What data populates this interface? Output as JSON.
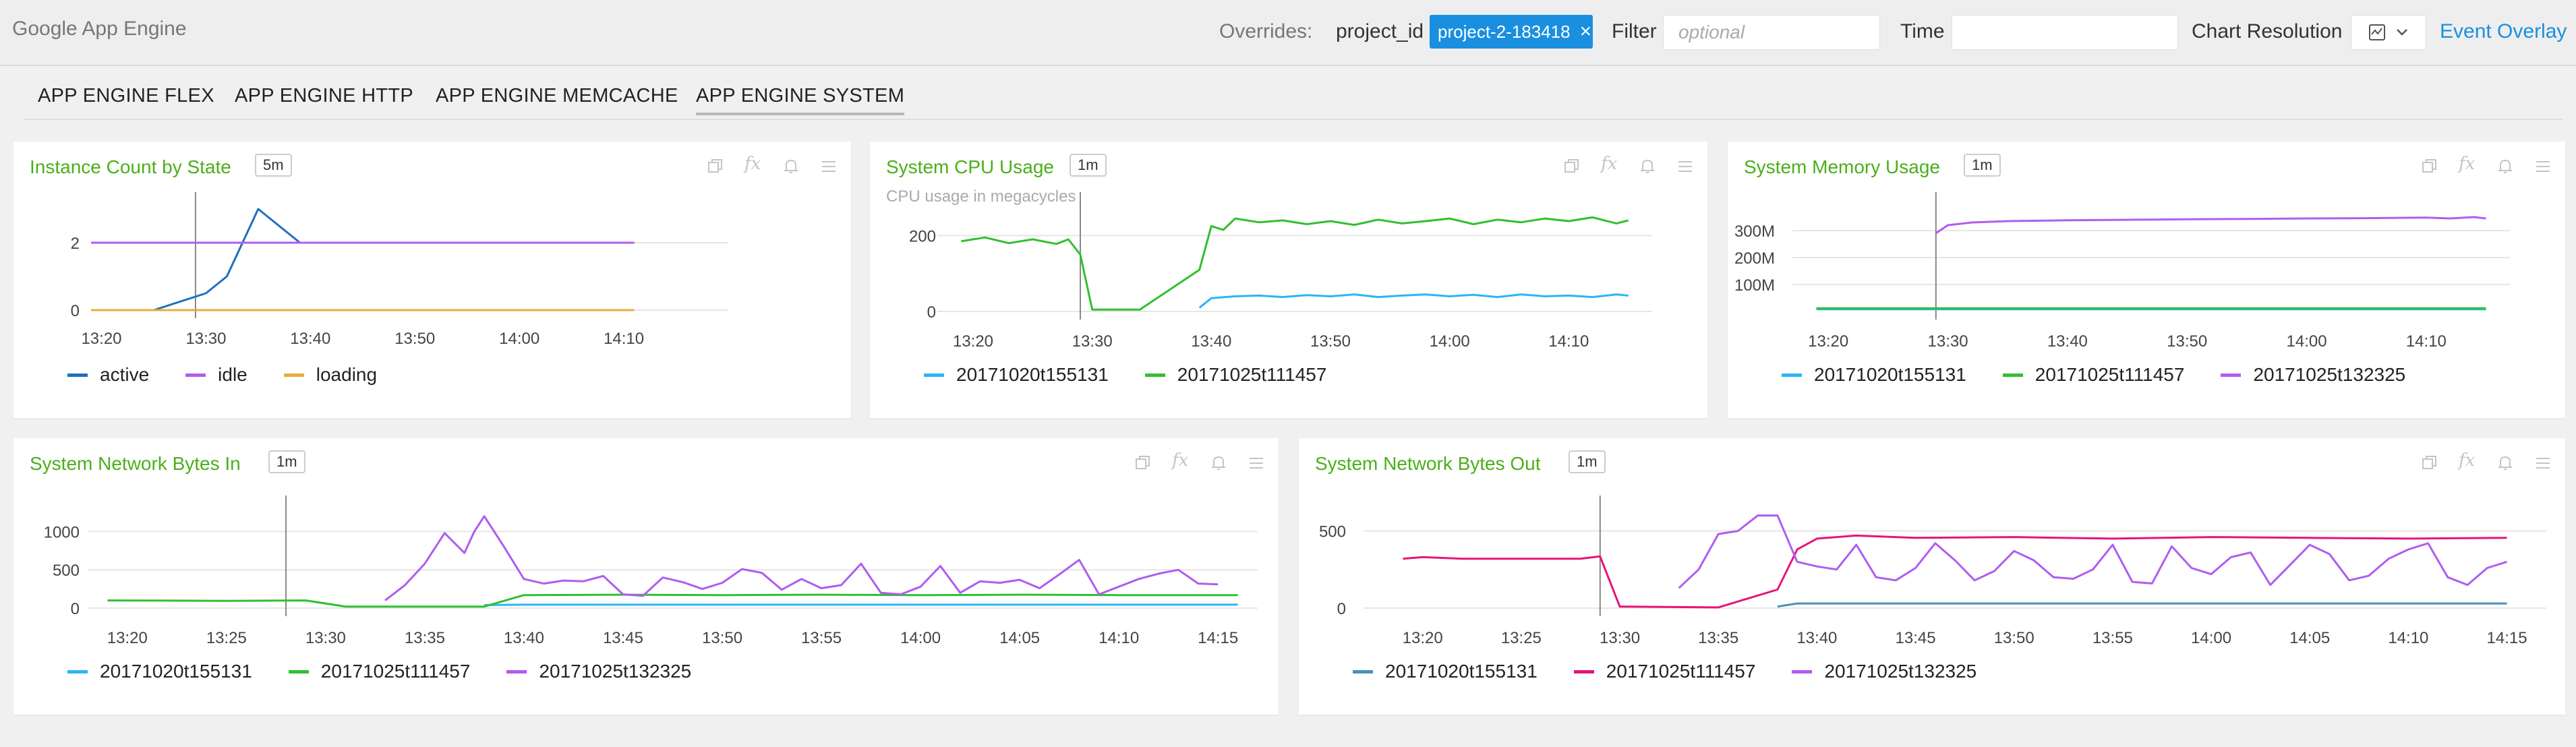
{
  "header": {
    "app_title": "Google App Engine",
    "overrides_label": "Overrides:",
    "project_label": "project_id",
    "project_value": "project-2-183418",
    "chip_close": "×",
    "filter_label": "Filter",
    "filter_placeholder": "optional",
    "time_label": "Time",
    "resolution_label": "Chart Resolution",
    "event_overlay": "Event Overlay"
  },
  "tabs": [
    {
      "label": "APP ENGINE FLEX",
      "active": false
    },
    {
      "label": "APP ENGINE HTTP",
      "active": false
    },
    {
      "label": "APP ENGINE MEMCACHE",
      "active": false
    },
    {
      "label": "APP ENGINE SYSTEM",
      "active": true
    }
  ],
  "colors": {
    "title_green": "#4caf1a",
    "accent_blue": "#1a8fe0",
    "active": "#1f6fbf",
    "idle": "#b05cf0",
    "loading": "#e8ad3a",
    "v155131": "#29b6f6",
    "v111457": "#30c030",
    "v132325": "#b05cf0",
    "v155131_out": "#4a90b8",
    "v111457_out": "#e6157a"
  },
  "panel_icons": [
    "copy-icon",
    "fx-icon",
    "bell-icon",
    "menu-icon"
  ],
  "panels": [
    {
      "title": "Instance Count by State",
      "badge": "5m",
      "subtitle": "",
      "legend": [
        "active",
        "idle",
        "loading"
      ]
    },
    {
      "title": "System CPU Usage",
      "badge": "1m",
      "subtitle": "CPU usage in megacycles",
      "legend": [
        "20171020t155131",
        "20171025t111457"
      ]
    },
    {
      "title": "System Memory Usage",
      "badge": "1m",
      "subtitle": "",
      "legend": [
        "20171020t155131",
        "20171025t111457",
        "20171025t132325"
      ]
    },
    {
      "title": "System Network Bytes In",
      "badge": "1m",
      "subtitle": "",
      "legend": [
        "20171020t155131",
        "20171025t111457",
        "20171025t132325"
      ]
    },
    {
      "title": "System Network Bytes Out",
      "badge": "1m",
      "subtitle": "",
      "legend": [
        "20171020t155131",
        "20171025t111457",
        "20171025t132325"
      ]
    }
  ],
  "chart_data": [
    {
      "type": "line",
      "title": "Instance Count by State",
      "x_ticks": [
        "13:20",
        "13:30",
        "13:40",
        "13:50",
        "14:00",
        "14:10"
      ],
      "y_ticks": [
        "0",
        "2"
      ],
      "ylim": [
        0,
        3
      ],
      "marker_x": "13:29",
      "series": [
        {
          "name": "active",
          "x": [
            "13:19",
            "13:25",
            "13:30",
            "13:32",
            "13:35",
            "13:39",
            "13:40",
            "14:11"
          ],
          "values": [
            0,
            0,
            0.5,
            1,
            3,
            2,
            2,
            2
          ]
        },
        {
          "name": "idle",
          "x": [
            "13:19",
            "13:39",
            "14:11"
          ],
          "values": [
            2,
            2,
            2
          ]
        },
        {
          "name": "loading",
          "x": [
            "13:19",
            "14:11"
          ],
          "values": [
            0,
            0
          ]
        }
      ]
    },
    {
      "type": "line",
      "title": "System CPU Usage",
      "x_ticks": [
        "13:20",
        "13:30",
        "13:40",
        "13:50",
        "14:00",
        "14:10"
      ],
      "y_ticks": [
        "0",
        "200"
      ],
      "ylim": [
        0,
        270
      ],
      "marker_x": "13:29",
      "series": [
        {
          "name": "20171020t155131",
          "x": [
            "13:39",
            "13:40",
            "13:42",
            "13:44",
            "13:46",
            "13:48",
            "13:50",
            "13:52",
            "13:54",
            "13:56",
            "13:58",
            "14:00",
            "14:02",
            "14:04",
            "14:06",
            "14:08",
            "14:10",
            "14:12",
            "14:14",
            "14:15"
          ],
          "values": [
            10,
            35,
            40,
            42,
            38,
            43,
            40,
            45,
            38,
            42,
            45,
            40,
            44,
            38,
            45,
            40,
            42,
            38,
            45,
            42
          ]
        },
        {
          "name": "20171025t111457",
          "x": [
            "13:19",
            "13:21",
            "13:23",
            "13:25",
            "13:27",
            "13:28",
            "13:29",
            "13:30",
            "13:34",
            "13:39",
            "13:40",
            "13:41",
            "13:42",
            "13:44",
            "13:46",
            "13:48",
            "13:50",
            "13:52",
            "13:54",
            "13:56",
            "13:58",
            "14:00",
            "14:02",
            "14:04",
            "14:06",
            "14:08",
            "14:10",
            "14:12",
            "14:14",
            "14:15"
          ],
          "values": [
            185,
            195,
            180,
            190,
            178,
            190,
            150,
            5,
            5,
            110,
            225,
            215,
            245,
            235,
            240,
            230,
            238,
            228,
            242,
            232,
            238,
            245,
            230,
            242,
            235,
            245,
            238,
            248,
            232,
            240
          ]
        }
      ]
    },
    {
      "type": "line",
      "title": "System Memory Usage",
      "x_ticks": [
        "13:20",
        "13:30",
        "13:40",
        "13:50",
        "14:00",
        "14:10"
      ],
      "y_ticks": [
        "100M",
        "200M",
        "300M"
      ],
      "ylim": [
        0,
        380
      ],
      "marker_x": "13:29",
      "series": [
        {
          "name": "20171020t155131",
          "x": [
            "13:19",
            "14:15"
          ],
          "values": [
            8,
            8
          ]
        },
        {
          "name": "20171025t111457",
          "x": [
            "13:19",
            "14:15"
          ],
          "values": [
            12,
            12
          ]
        },
        {
          "name": "20171025t132325",
          "x": [
            "13:29",
            "13:30",
            "13:32",
            "13:35",
            "13:40",
            "13:45",
            "13:50",
            "13:55",
            "14:00",
            "14:05",
            "14:10",
            "14:12",
            "14:14",
            "14:15"
          ],
          "values": [
            290,
            320,
            330,
            335,
            338,
            340,
            342,
            343,
            345,
            346,
            348,
            345,
            350,
            345
          ]
        }
      ]
    },
    {
      "type": "line",
      "title": "System Network Bytes In",
      "x_ticks": [
        "13:20",
        "13:25",
        "13:30",
        "13:35",
        "13:40",
        "13:45",
        "13:50",
        "13:55",
        "14:00",
        "14:05",
        "14:10",
        "14:15"
      ],
      "y_ticks": [
        "0",
        "500",
        "1000"
      ],
      "ylim": [
        0,
        1250
      ],
      "marker_x": "13:28",
      "series": [
        {
          "name": "20171020t155131",
          "x": [
            "13:38",
            "13:40",
            "14:16"
          ],
          "values": [
            40,
            45,
            45
          ]
        },
        {
          "name": "20171025t111457",
          "x": [
            "13:19",
            "13:25",
            "13:29",
            "13:31",
            "13:38",
            "13:40",
            "13:45",
            "13:50",
            "13:55",
            "14:00",
            "14:05",
            "14:10",
            "14:16"
          ],
          "values": [
            100,
            95,
            100,
            20,
            20,
            170,
            175,
            170,
            175,
            170,
            175,
            170,
            170
          ]
        },
        {
          "name": "20171025t132325",
          "x": [
            "13:33",
            "13:34",
            "13:35",
            "13:36",
            "13:37",
            "13:37.5",
            "13:38",
            "13:39",
            "13:40",
            "13:41",
            "13:42",
            "13:43",
            "13:44",
            "13:45",
            "13:46",
            "13:47",
            "13:48",
            "13:49",
            "13:50",
            "13:51",
            "13:52",
            "13:53",
            "13:54",
            "13:55",
            "13:56",
            "13:57",
            "13:58",
            "13:59",
            "14:00",
            "14:01",
            "14:02",
            "14:03",
            "14:04",
            "14:05",
            "14:06",
            "14:07",
            "14:08",
            "14:09",
            "14:10",
            "14:11",
            "14:12",
            "14:13",
            "14:14",
            "14:15"
          ],
          "values": [
            100,
            300,
            580,
            980,
            720,
            1000,
            1200,
            800,
            380,
            320,
            360,
            350,
            420,
            180,
            160,
            400,
            340,
            250,
            330,
            510,
            460,
            240,
            380,
            260,
            300,
            580,
            200,
            180,
            280,
            550,
            200,
            350,
            330,
            370,
            260,
            440,
            630,
            180,
            280,
            380,
            450,
            500,
            320,
            310
          ]
        }
      ]
    },
    {
      "type": "line",
      "title": "System Network Bytes Out",
      "x_ticks": [
        "13:20",
        "13:25",
        "13:30",
        "13:35",
        "13:40",
        "13:45",
        "13:50",
        "13:55",
        "14:00",
        "14:05",
        "14:10",
        "14:15"
      ],
      "y_ticks": [
        "0",
        "500"
      ],
      "ylim": [
        0,
        620
      ],
      "marker_x": "13:29",
      "series": [
        {
          "name": "20171020t155131",
          "x": [
            "13:38",
            "13:39",
            "14:15"
          ],
          "values": [
            10,
            30,
            30
          ]
        },
        {
          "name": "20171025t111457",
          "x": [
            "13:19",
            "13:20",
            "13:22",
            "13:25",
            "13:28",
            "13:29",
            "13:30",
            "13:35",
            "13:38",
            "13:39",
            "13:40",
            "13:42",
            "13:45",
            "13:50",
            "13:55",
            "14:00",
            "14:05",
            "14:10",
            "14:15"
          ],
          "values": [
            320,
            330,
            320,
            320,
            320,
            335,
            10,
            5,
            120,
            380,
            450,
            470,
            455,
            460,
            450,
            460,
            455,
            450,
            455
          ]
        },
        {
          "name": "20171025t132325",
          "x": [
            "13:33",
            "13:34",
            "13:35",
            "13:36",
            "13:37",
            "13:38",
            "13:39",
            "13:40",
            "13:41",
            "13:42",
            "13:43",
            "13:44",
            "13:45",
            "13:46",
            "13:47",
            "13:48",
            "13:49",
            "13:50",
            "13:51",
            "13:52",
            "13:53",
            "13:54",
            "13:55",
            "13:56",
            "13:57",
            "13:58",
            "13:59",
            "14:00",
            "14:01",
            "14:02",
            "14:03",
            "14:04",
            "14:05",
            "14:06",
            "14:07",
            "14:08",
            "14:09",
            "14:10",
            "14:11",
            "14:12",
            "14:13",
            "14:14",
            "14:15"
          ],
          "values": [
            130,
            250,
            480,
            500,
            600,
            600,
            300,
            270,
            250,
            410,
            200,
            180,
            260,
            420,
            310,
            180,
            240,
            370,
            310,
            200,
            190,
            250,
            410,
            170,
            160,
            400,
            260,
            220,
            330,
            360,
            150,
            280,
            410,
            350,
            180,
            210,
            320,
            380,
            420,
            200,
            150,
            260,
            300
          ]
        }
      ]
    }
  ]
}
